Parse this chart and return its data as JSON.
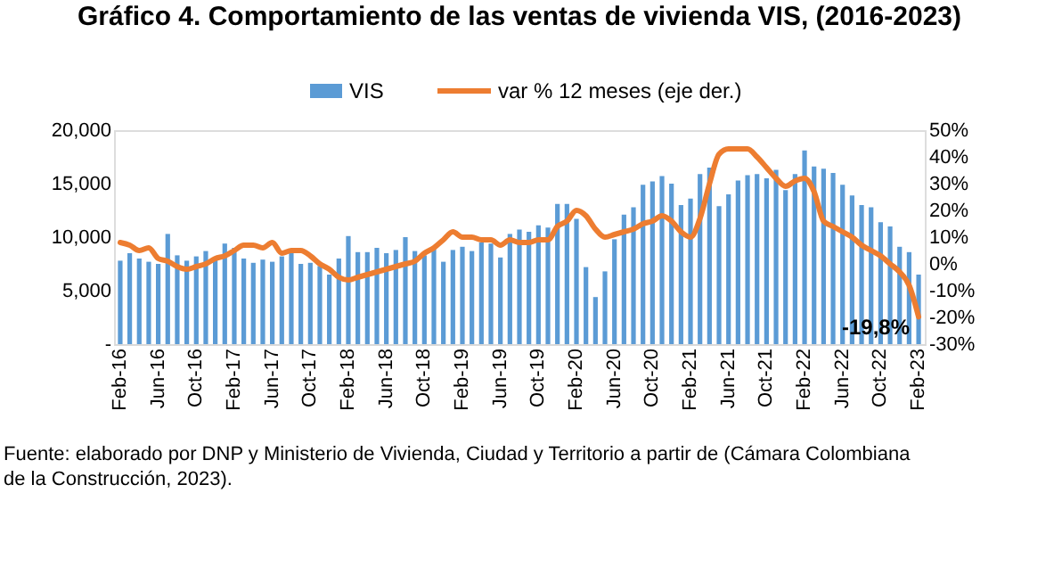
{
  "chart_data": {
    "type": "bar",
    "title": "Gráfico 4. Comportamiento de las ventas de vivienda VIS, (2016-2023)",
    "categories": [
      "Feb-16",
      null,
      null,
      null,
      "Jun-16",
      null,
      null,
      null,
      "Oct-16",
      null,
      null,
      null,
      "Feb-17",
      null,
      null,
      null,
      "Jun-17",
      null,
      null,
      null,
      "Oct-17",
      null,
      null,
      null,
      "Feb-18",
      null,
      null,
      null,
      "Jun-18",
      null,
      null,
      null,
      "Oct-18",
      null,
      null,
      null,
      "Feb-19",
      null,
      null,
      null,
      "Jun-19",
      null,
      null,
      null,
      "Oct-19",
      null,
      null,
      null,
      "Feb-20",
      null,
      null,
      null,
      "Jun-20",
      null,
      null,
      null,
      "Oct-20",
      null,
      null,
      null,
      "Feb-21",
      null,
      null,
      null,
      "Jun-21",
      null,
      null,
      null,
      "Oct-21",
      null,
      null,
      null,
      "Feb-22",
      null,
      null,
      null,
      "Jun-22",
      null,
      null,
      null,
      "Oct-22",
      null,
      null,
      null,
      "Feb-23"
    ],
    "series": [
      {
        "name": "VIS",
        "color": "#5b9bd5",
        "values": [
          7800,
          8500,
          8000,
          7700,
          7500,
          10300,
          8300,
          7800,
          8200,
          8700,
          8000,
          9400,
          9000,
          8000,
          7600,
          7900,
          7700,
          8200,
          8500,
          7500,
          7600,
          7300,
          6500,
          8000,
          10100,
          8600,
          8600,
          9000,
          8500,
          8800,
          10000,
          8700,
          8300,
          8900,
          7700,
          8800,
          9100,
          8700,
          9500,
          9400,
          8100,
          10300,
          10700,
          10500,
          11100,
          10900,
          13100,
          13100,
          11700,
          7200,
          4400,
          6800,
          9800,
          12100,
          12800,
          14900,
          15200,
          15700,
          15000,
          13000,
          13600,
          15900,
          16500,
          12900,
          14000,
          15300,
          15800,
          15900,
          15500,
          16300,
          14400,
          15900,
          18100,
          16600,
          16400,
          16000,
          14900,
          13900,
          13000,
          12800,
          11400,
          11000,
          9100,
          8600,
          6500
        ]
      },
      {
        "name": "var % 12 meses (eje der.)",
        "type": "line",
        "axis": "y2",
        "color": "#ed7d31",
        "values": [
          8,
          7,
          5,
          6,
          2,
          1,
          -1,
          -2,
          -1,
          0,
          2,
          3,
          5,
          7,
          7,
          6,
          8,
          4,
          5,
          5,
          3,
          0,
          -2,
          -5,
          -6,
          -5,
          -4,
          -3,
          -2,
          -1,
          0,
          1,
          4,
          6,
          9,
          12,
          10,
          10,
          9,
          9,
          7,
          9,
          8,
          8,
          9,
          9,
          14,
          16,
          20,
          18,
          13,
          10,
          11,
          12,
          13,
          15,
          16,
          18,
          16,
          12,
          10,
          17,
          30,
          41,
          43,
          43,
          43,
          40,
          36,
          32,
          29,
          31,
          32,
          27,
          16,
          14,
          12,
          10,
          7,
          5,
          3,
          0,
          -3,
          -8,
          -19.8
        ]
      }
    ],
    "ylim": [
      0,
      20000
    ],
    "yticks": [
      {
        "value": 0,
        "label": "-"
      },
      {
        "value": 5000,
        "label": "5,000"
      },
      {
        "value": 10000,
        "label": "10,000"
      },
      {
        "value": 15000,
        "label": "15,000"
      },
      {
        "value": 20000,
        "label": "20,000"
      }
    ],
    "y2lim": [
      -30,
      50
    ],
    "y2ticks": [
      {
        "value": -30,
        "label": "-30%"
      },
      {
        "value": -20,
        "label": "-20%"
      },
      {
        "value": -10,
        "label": "-10%"
      },
      {
        "value": 0,
        "label": "0%"
      },
      {
        "value": 10,
        "label": "10%"
      },
      {
        "value": 20,
        "label": "20%"
      },
      {
        "value": 30,
        "label": "30%"
      },
      {
        "value": 40,
        "label": "40%"
      },
      {
        "value": 50,
        "label": "50%"
      }
    ],
    "legend": "top",
    "annotations": [
      {
        "text": "-19,8%",
        "x": "Feb-23",
        "y": -19.8
      },
      "Fuente: elaborado por DNP y Ministerio de Vivienda, Ciudad y Territorio a partir de (Cámara Colombiana de la Construcción, 2023)."
    ]
  }
}
